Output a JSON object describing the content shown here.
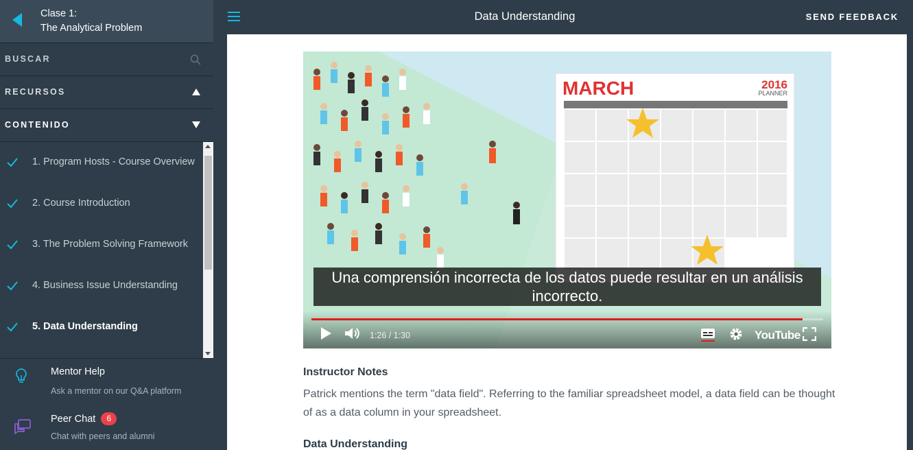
{
  "sidebar": {
    "lesson_title_line1": "Clase 1:",
    "lesson_title_line2": "The Analytical Problem",
    "search_label": "BUSCAR",
    "resources_label": "RECURSOS",
    "content_label": "CONTENIDO",
    "items": [
      {
        "label": "1. Program Hosts - Course Overview",
        "completed": true
      },
      {
        "label": "2. Course Introduction",
        "completed": true
      },
      {
        "label": "3. The Problem Solving Framework",
        "completed": true
      },
      {
        "label": "4. Business Issue Understanding",
        "completed": true
      },
      {
        "label": "5. Data Understanding",
        "completed": true,
        "active": true
      }
    ],
    "footer": {
      "mentor_title": "Mentor Help",
      "mentor_subtitle": "Ask a mentor on our Q&A platform",
      "peer_title": "Peer Chat",
      "peer_badge": "6",
      "peer_subtitle": "Chat with peers and alumni"
    }
  },
  "header": {
    "title": "Data Understanding",
    "feedback_label": "SEND FEEDBACK"
  },
  "video": {
    "calendar_month": "MARCH",
    "calendar_year": "2016",
    "calendar_sub": "PLANNER",
    "caption": "Una comprensión incorrecta de los datos puede resultar en un análisis incorrecto.",
    "time": "1:26 / 1:30",
    "progress_fraction": 0.96,
    "brand": "YouTube"
  },
  "content": {
    "notes_title": "Instructor Notes",
    "notes_text": "Patrick mentions the term \"data field\". Referring to the familiar spreadsheet model, a data field can be thought of as a data column in your spreadsheet.",
    "section_title": "Data Understanding"
  },
  "colors": {
    "accent": "#15b8e0",
    "sidebar_bg": "#2e3d49",
    "badge": "#e8424c",
    "progress": "#e21b1b"
  }
}
